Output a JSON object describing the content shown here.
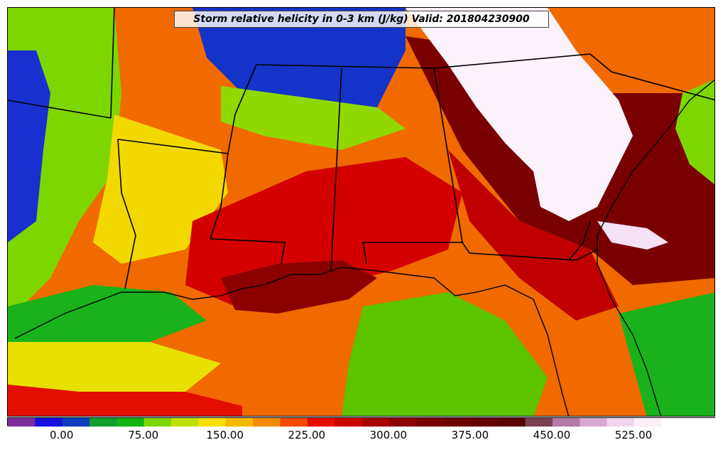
{
  "map": {
    "title": "Storm relative helicity in 0-3 km (J/kg) Valid: 201804230900",
    "region": "Southeastern United States",
    "colors": {
      "land_base": "#e87a00",
      "state_border": "#000000"
    }
  },
  "colorbar": {
    "tick_labels": [
      "0.00",
      "75.00",
      "150.00",
      "225.00",
      "300.00",
      "375.00",
      "450.00",
      "525.00"
    ],
    "tick_values": [
      0,
      75,
      150,
      225,
      300,
      375,
      450,
      525
    ],
    "range": [
      -50,
      600
    ],
    "step": 25,
    "colors": [
      "#7b2d9b",
      "#1a10e0",
      "#0b3fbf",
      "#119e2e",
      "#14b414",
      "#7ed600",
      "#bde000",
      "#f5e000",
      "#f5b900",
      "#f58b00",
      "#f54a00",
      "#e60d00",
      "#cc0000",
      "#a80000",
      "#8c0000",
      "#7a0000",
      "#6e0000",
      "#640000",
      "#5a0000",
      "#7a4050",
      "#b37aa3",
      "#d8a9cf",
      "#f0d6ec",
      "#faf0f8",
      "#ffffff",
      "#ffffff"
    ]
  }
}
